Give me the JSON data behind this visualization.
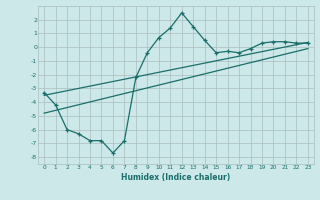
{
  "xlabel": "Humidex (Indice chaleur)",
  "ylabel": "",
  "background_color": "#cce8e8",
  "grid_color": "#aabcbc",
  "line_color": "#1a6e6a",
  "xlim": [
    -0.5,
    23.5
  ],
  "ylim": [
    -8.5,
    3.0
  ],
  "xticks": [
    0,
    1,
    2,
    3,
    4,
    5,
    6,
    7,
    8,
    9,
    10,
    11,
    12,
    13,
    14,
    15,
    16,
    17,
    18,
    19,
    20,
    21,
    22,
    23
  ],
  "yticks": [
    -8,
    -7,
    -6,
    -5,
    -4,
    -3,
    -2,
    -1,
    0,
    1,
    2
  ],
  "series1_x": [
    0,
    1,
    2,
    3,
    4,
    5,
    6,
    7,
    8,
    9,
    10,
    11,
    12,
    13,
    14,
    15,
    16,
    17,
    18,
    19,
    20,
    21,
    22,
    23
  ],
  "series1_y": [
    -3.3,
    -4.2,
    -6.0,
    -6.3,
    -6.8,
    -6.8,
    -7.7,
    -6.8,
    -2.2,
    -0.4,
    0.7,
    1.4,
    2.5,
    1.5,
    0.5,
    -0.4,
    -0.3,
    -0.4,
    -0.1,
    0.3,
    0.4,
    0.4,
    0.3,
    0.3
  ],
  "series3_x": [
    0,
    23
  ],
  "series3_y": [
    -3.5,
    0.35
  ],
  "series4_x": [
    0,
    23
  ],
  "series4_y": [
    -4.8,
    -0.1
  ]
}
